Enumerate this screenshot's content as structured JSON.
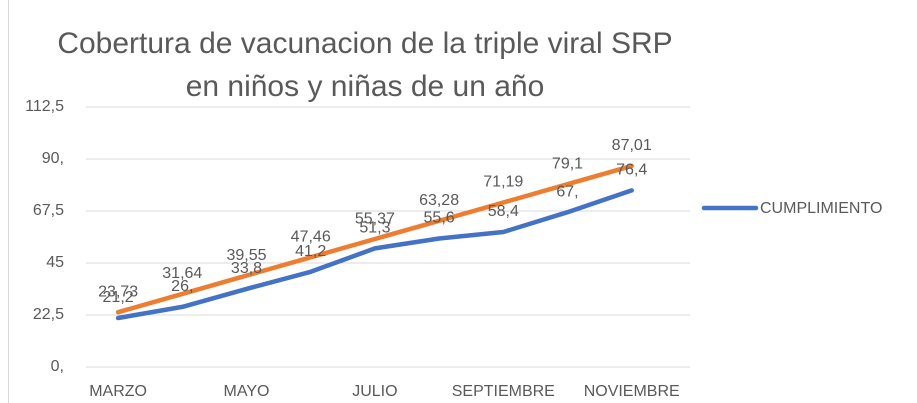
{
  "chart_data": {
    "type": "line",
    "title": [
      "Cobertura de vacunacion de la triple viral SRP",
      "en niños y niñas de un año"
    ],
    "categories": [
      "MARZO",
      null,
      "MAYO",
      null,
      "JULIO",
      null,
      "SEPTIEMBRE",
      null,
      "NOVIEMBRE"
    ],
    "series": [
      {
        "name": "CUMPLIMIENTO",
        "color": "#4472c4",
        "values": [
          21.2,
          26,
          33.8,
          41.2,
          51.3,
          55.6,
          58.4,
          67,
          76.4
        ],
        "value_labels": [
          "21,2",
          "26,",
          "33,8",
          "41,2",
          "51,3",
          "55,6",
          "58,4",
          "67,",
          "76,4"
        ]
      },
      {
        "color": "#ed7d31",
        "values": [
          23.73,
          31.64,
          39.55,
          47.46,
          55.37,
          63.28,
          71.19,
          79.1,
          87.01
        ],
        "value_labels": [
          "23,73",
          "31,64",
          "39,55",
          "47,46",
          "55,37",
          "63,28",
          "71,19",
          "79,1",
          "87,01"
        ]
      }
    ],
    "ylim": [
      0,
      112.5
    ],
    "yticks": [
      {
        "value": 0,
        "label": "0,"
      },
      {
        "value": 22.5,
        "label": "22,5"
      },
      45,
      {
        "value": 67.5,
        "label": "67,5"
      },
      {
        "value": 90,
        "label": "90,"
      },
      {
        "value": 112.5,
        "label": "112,5"
      }
    ],
    "grid": true,
    "legend": "right"
  }
}
